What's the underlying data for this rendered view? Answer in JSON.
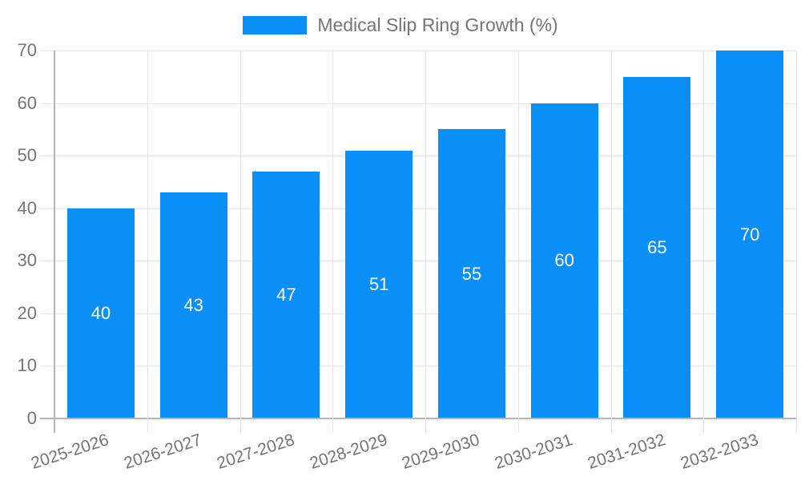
{
  "legend": {
    "label": "Medical Slip Ring Growth (%)",
    "swatch_color": "#0a8ff7"
  },
  "chart_data": {
    "type": "bar",
    "title": "Medical Slip Ring Growth (%)",
    "categories": [
      "2025-2026",
      "2026-2027",
      "2027-2028",
      "2028-2029",
      "2029-2030",
      "2030-2031",
      "2031-2032",
      "2032-2033"
    ],
    "values": [
      40,
      43,
      47,
      51,
      55,
      60,
      65,
      70
    ],
    "series_name": "Medical Slip Ring Growth (%)",
    "xlabel": "",
    "ylabel": "",
    "ylim": [
      0,
      70
    ],
    "yticks": [
      0,
      10,
      20,
      30,
      40,
      50,
      60,
      70
    ],
    "grid": true,
    "legend_position": "top",
    "bar_color": "#0a8ff7",
    "value_label_color": "#ffffff",
    "axis_text_color": "#757575",
    "gridline_color": "#e6e6e6",
    "axis_line_color": "#b6b6b6",
    "x_label_rotation_deg": -18
  }
}
